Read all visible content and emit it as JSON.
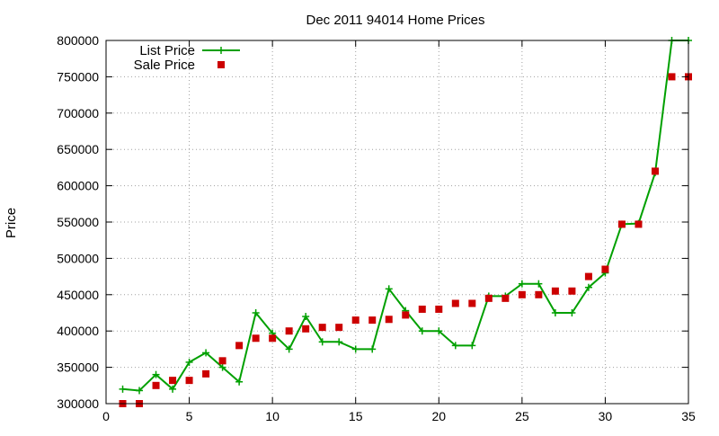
{
  "chart_data": {
    "type": "line",
    "title": "Dec 2011 94014 Home Prices",
    "xlabel": "",
    "ylabel": "Price",
    "xlim": [
      0,
      35
    ],
    "ylim": [
      300000,
      800000
    ],
    "x_ticks": [
      "0",
      "5",
      "10",
      "15",
      "20",
      "25",
      "30",
      "35"
    ],
    "y_ticks": [
      "300000",
      "350000",
      "400000",
      "450000",
      "500000",
      "550000",
      "600000",
      "650000",
      "700000",
      "750000",
      "800000"
    ],
    "grid": true,
    "legend_position": "top-left",
    "series": [
      {
        "name": "List Price",
        "style": "line-and-plus",
        "color": "#00a000",
        "x": [
          1,
          2,
          3,
          4,
          5,
          6,
          7,
          8,
          9,
          10,
          11,
          12,
          13,
          14,
          15,
          16,
          17,
          18,
          19,
          20,
          21,
          22,
          23,
          24,
          25,
          26,
          27,
          28,
          29,
          30,
          31,
          32,
          33,
          34,
          35
        ],
        "values": [
          320000,
          318000,
          340000,
          320000,
          357000,
          370000,
          350000,
          330000,
          425000,
          397000,
          375000,
          420000,
          385000,
          385000,
          375000,
          375000,
          458000,
          428000,
          400000,
          400000,
          380000,
          380000,
          448000,
          448000,
          465000,
          465000,
          425000,
          425000,
          460000,
          480000,
          547000,
          548000,
          618000,
          800000,
          800000
        ]
      },
      {
        "name": "Sale Price",
        "style": "square-markers",
        "color": "#cc0000",
        "x": [
          1,
          2,
          3,
          4,
          5,
          6,
          7,
          8,
          9,
          10,
          11,
          12,
          13,
          14,
          15,
          16,
          17,
          18,
          19,
          20,
          21,
          22,
          23,
          24,
          25,
          26,
          27,
          28,
          29,
          30,
          31,
          32,
          33,
          34,
          35
        ],
        "values": [
          300000,
          300000,
          325000,
          332000,
          332000,
          341000,
          359000,
          380000,
          390000,
          390000,
          400000,
          403000,
          405000,
          405000,
          415000,
          415000,
          416000,
          422000,
          430000,
          430000,
          438000,
          438000,
          445000,
          445000,
          450000,
          450000,
          455000,
          455000,
          475000,
          485000,
          547000,
          547000,
          620000,
          750000,
          750000
        ]
      }
    ]
  }
}
